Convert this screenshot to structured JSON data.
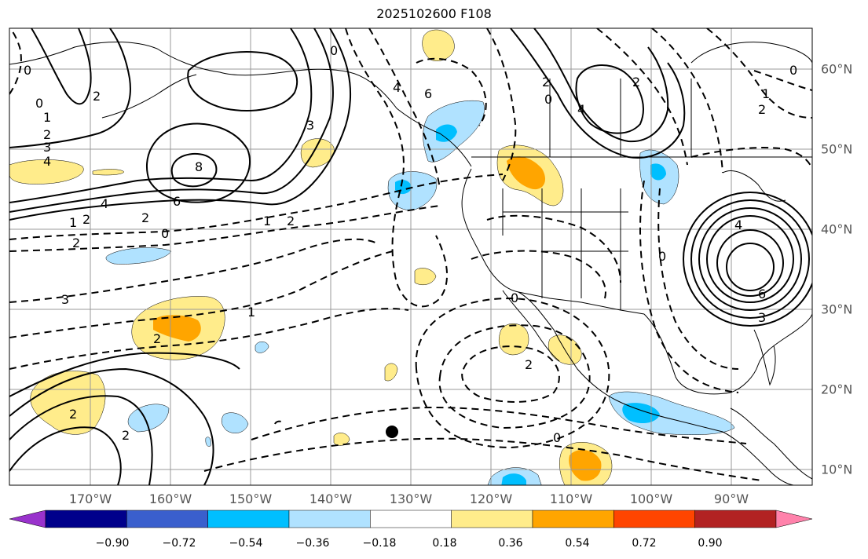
{
  "title": "2025102600 F108",
  "lon_labels": [
    "170°W",
    "160°W",
    "150°W",
    "140°W",
    "130°W",
    "120°W",
    "110°W",
    "100°W",
    "90°W"
  ],
  "lat_labels": [
    "60°N",
    "50°N",
    "40°N",
    "30°N",
    "20°N",
    "10°N"
  ],
  "colorbar": {
    "ticks": [
      "−0.90",
      "−0.72",
      "−0.54",
      "−0.36",
      "−0.18",
      "0.18",
      "0.36",
      "0.54",
      "0.72",
      "0.90"
    ],
    "colors": [
      "#9932cc",
      "#00008b",
      "#3a5fcd",
      "#00bfff",
      "#b0e2ff",
      "#ffffff",
      "#ffec8b",
      "#ffa500",
      "#ff4500",
      "#b22222",
      "#ff82ab"
    ]
  },
  "contour_labels": [
    "0",
    "1",
    "2",
    "3",
    "4",
    "8",
    "6",
    "4",
    "2",
    "1",
    "2",
    "0",
    "2",
    "3",
    "2",
    "0",
    "0",
    "2",
    "4",
    "6",
    "2",
    "1",
    "2",
    "0",
    "6",
    "4",
    "2",
    "1",
    "0",
    "4",
    "6",
    "3",
    "0",
    "2",
    "0"
  ],
  "colors": {
    "positive": "#ffec8b",
    "positive_strong": "#ffa500",
    "negative": "#b0e2ff",
    "negative_strong": "#00bfff",
    "grid": "#999999"
  }
}
